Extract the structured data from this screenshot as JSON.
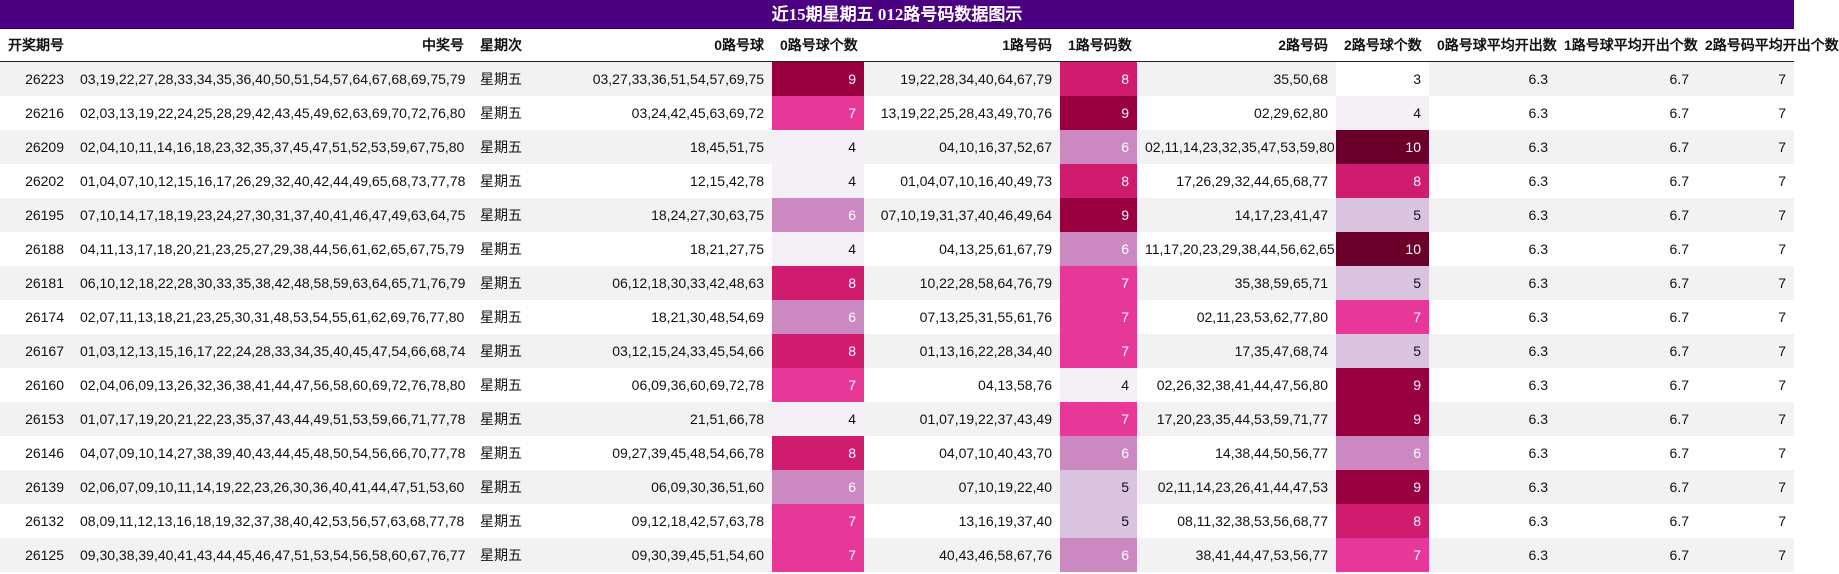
{
  "title": "近15期星期五 012路号码数据图示",
  "chart_data": {
    "type": "table",
    "title": "近15期星期五 012路号码数据图示",
    "columns": [
      "开奖期号",
      "中奖号",
      "星期次",
      "0路号球",
      "0路号球个数",
      "1路号码",
      "1路号码数",
      "2路号码",
      "2路号球个数",
      "0路号球平均开出数",
      "1路号球平均开出个数",
      "2路号码平均开出个数"
    ],
    "rows": [
      [
        "26223",
        "03,19,22,27,28,33,34,35,36,40,50,51,54,57,64,67,68,69,75,79",
        "星期五",
        "03,27,33,36,51,54,57,69,75",
        "9",
        "19,22,28,34,40,64,67,79",
        "8",
        "35,50,68",
        "3",
        "6.3",
        "6.7",
        "7"
      ],
      [
        "26216",
        "02,03,13,19,22,24,25,28,29,42,43,45,49,62,63,69,70,72,76,80",
        "星期五",
        "03,24,42,45,63,69,72",
        "7",
        "13,19,22,25,28,43,49,70,76",
        "9",
        "02,29,62,80",
        "4",
        "6.3",
        "6.7",
        "7"
      ],
      [
        "26209",
        "02,04,10,11,14,16,18,23,32,35,37,45,47,51,52,53,59,67,75,80",
        "星期五",
        "18,45,51,75",
        "4",
        "04,10,16,37,52,67",
        "6",
        "02,11,14,23,32,35,47,53,59,80",
        "10",
        "6.3",
        "6.7",
        "7"
      ],
      [
        "26202",
        "01,04,07,10,12,15,16,17,26,29,32,40,42,44,49,65,68,73,77,78",
        "星期五",
        "12,15,42,78",
        "4",
        "01,04,07,10,16,40,49,73",
        "8",
        "17,26,29,32,44,65,68,77",
        "8",
        "6.3",
        "6.7",
        "7"
      ],
      [
        "26195",
        "07,10,14,17,18,19,23,24,27,30,31,37,40,41,46,47,49,63,64,75",
        "星期五",
        "18,24,27,30,63,75",
        "6",
        "07,10,19,31,37,40,46,49,64",
        "9",
        "14,17,23,41,47",
        "5",
        "6.3",
        "6.7",
        "7"
      ],
      [
        "26188",
        "04,11,13,17,18,20,21,23,25,27,29,38,44,56,61,62,65,67,75,79",
        "星期五",
        "18,21,27,75",
        "4",
        "04,13,25,61,67,79",
        "6",
        "11,17,20,23,29,38,44,56,62,65",
        "10",
        "6.3",
        "6.7",
        "7"
      ],
      [
        "26181",
        "06,10,12,18,22,28,30,33,35,38,42,48,58,59,63,64,65,71,76,79",
        "星期五",
        "06,12,18,30,33,42,48,63",
        "8",
        "10,22,28,58,64,76,79",
        "7",
        "35,38,59,65,71",
        "5",
        "6.3",
        "6.7",
        "7"
      ],
      [
        "26174",
        "02,07,11,13,18,21,23,25,30,31,48,53,54,55,61,62,69,76,77,80",
        "星期五",
        "18,21,30,48,54,69",
        "6",
        "07,13,25,31,55,61,76",
        "7",
        "02,11,23,53,62,77,80",
        "7",
        "6.3",
        "6.7",
        "7"
      ],
      [
        "26167",
        "01,03,12,13,15,16,17,22,24,28,33,34,35,40,45,47,54,66,68,74",
        "星期五",
        "03,12,15,24,33,45,54,66",
        "8",
        "01,13,16,22,28,34,40",
        "7",
        "17,35,47,68,74",
        "5",
        "6.3",
        "6.7",
        "7"
      ],
      [
        "26160",
        "02,04,06,09,13,26,32,36,38,41,44,47,56,58,60,69,72,76,78,80",
        "星期五",
        "06,09,36,60,69,72,78",
        "7",
        "04,13,58,76",
        "4",
        "02,26,32,38,41,44,47,56,80",
        "9",
        "6.3",
        "6.7",
        "7"
      ],
      [
        "26153",
        "01,07,17,19,20,21,22,23,35,37,43,44,49,51,53,59,66,71,77,78",
        "星期五",
        "21,51,66,78",
        "4",
        "01,07,19,22,37,43,49",
        "7",
        "17,20,23,35,44,53,59,71,77",
        "9",
        "6.3",
        "6.7",
        "7"
      ],
      [
        "26146",
        "04,07,09,10,14,27,38,39,40,43,44,45,48,50,54,56,66,70,77,78",
        "星期五",
        "09,27,39,45,48,54,66,78",
        "8",
        "04,07,10,40,43,70",
        "6",
        "14,38,44,50,56,77",
        "6",
        "6.3",
        "6.7",
        "7"
      ],
      [
        "26139",
        "02,06,07,09,10,11,14,19,22,23,26,30,36,40,41,44,47,51,53,60",
        "星期五",
        "06,09,30,36,51,60",
        "6",
        "07,10,19,22,40",
        "5",
        "02,11,14,23,26,41,44,47,53",
        "9",
        "6.3",
        "6.7",
        "7"
      ],
      [
        "26132",
        "08,09,11,12,13,16,18,19,32,37,38,40,42,53,56,57,63,68,77,78",
        "星期五",
        "09,12,18,42,57,63,78",
        "7",
        "13,16,19,37,40",
        "5",
        "08,11,32,38,53,56,68,77",
        "8",
        "6.3",
        "6.7",
        "7"
      ],
      [
        "26125",
        "09,30,38,39,40,41,43,44,45,46,47,51,53,54,56,58,60,67,76,77",
        "星期五",
        "09,30,39,45,51,54,60",
        "7",
        "40,43,46,58,67,76",
        "6",
        "38,41,44,47,53,56,77",
        "7",
        "6.3",
        "6.7",
        "7"
      ]
    ],
    "heatmap_columns": [
      4,
      6,
      8
    ],
    "heat_scale": {
      "min": 3,
      "max": 10,
      "colors": {
        "3": "#ffffff",
        "4": "#f5eff6",
        "5": "#dac3df",
        "6": "#cc88c0",
        "7": "#e7389a",
        "8": "#d01c6e",
        "9": "#990040",
        "10": "#6a0029"
      },
      "light_text": [
        "6",
        "7",
        "8",
        "9",
        "10"
      ]
    }
  }
}
